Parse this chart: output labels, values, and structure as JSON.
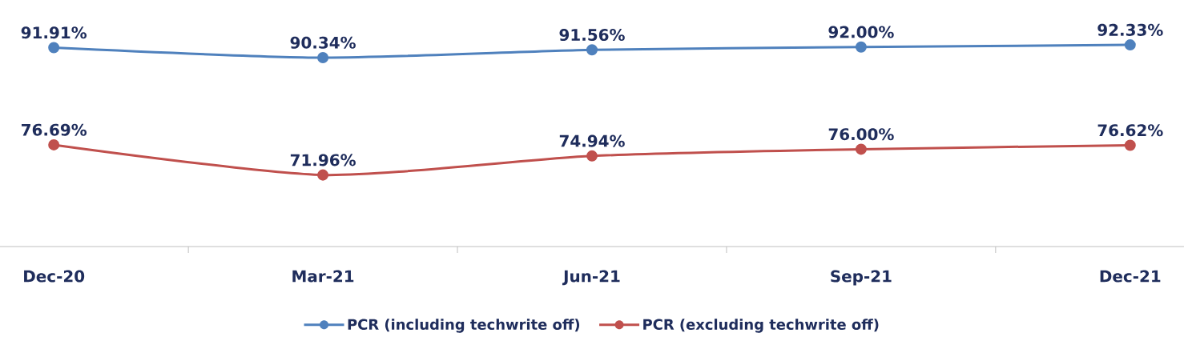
{
  "chart_data": {
    "type": "line",
    "categories": [
      "Dec-20",
      "Mar-21",
      "Jun-21",
      "Sep-21",
      "Dec-21"
    ],
    "series": [
      {
        "name": "PCR (including techwrite off)",
        "color": "#4f81bd",
        "values": [
          91.91,
          90.34,
          91.56,
          92.0,
          92.33
        ],
        "value_labels": [
          "91.91%",
          "90.34%",
          "91.56%",
          "92.00%",
          "92.33%"
        ]
      },
      {
        "name": "PCR (excluding techwrite off)",
        "color": "#c0504d",
        "values": [
          76.69,
          71.96,
          74.94,
          76.0,
          76.62
        ],
        "value_labels": [
          "76.69%",
          "71.96%",
          "74.94%",
          "76.00%",
          "76.62%"
        ]
      }
    ],
    "tick_labels": "x",
    "legend": "bottom",
    "marker": "circle",
    "line_style": "solid"
  }
}
